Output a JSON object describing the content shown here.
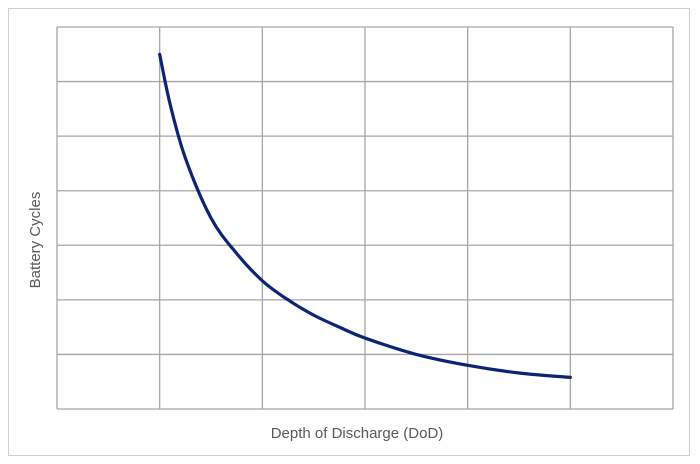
{
  "chart_data": {
    "type": "line",
    "title": "",
    "xlabel": "Depth of Discharge (DoD)",
    "ylabel": "Battery Cycles",
    "xlim": [
      0,
      6
    ],
    "ylim": [
      0,
      7
    ],
    "grid": true,
    "tick_labels_shown": false,
    "legend": "none",
    "series": [
      {
        "color": "#0d2473",
        "x": [
          1.0,
          1.1,
          1.25,
          1.5,
          1.75,
          2.0,
          2.25,
          2.5,
          2.75,
          3.0,
          3.5,
          4.0,
          4.5,
          5.0
        ],
        "y": [
          6.5,
          5.6,
          4.6,
          3.5,
          2.85,
          2.35,
          2.0,
          1.72,
          1.5,
          1.3,
          1.0,
          0.8,
          0.66,
          0.58
        ]
      }
    ]
  }
}
